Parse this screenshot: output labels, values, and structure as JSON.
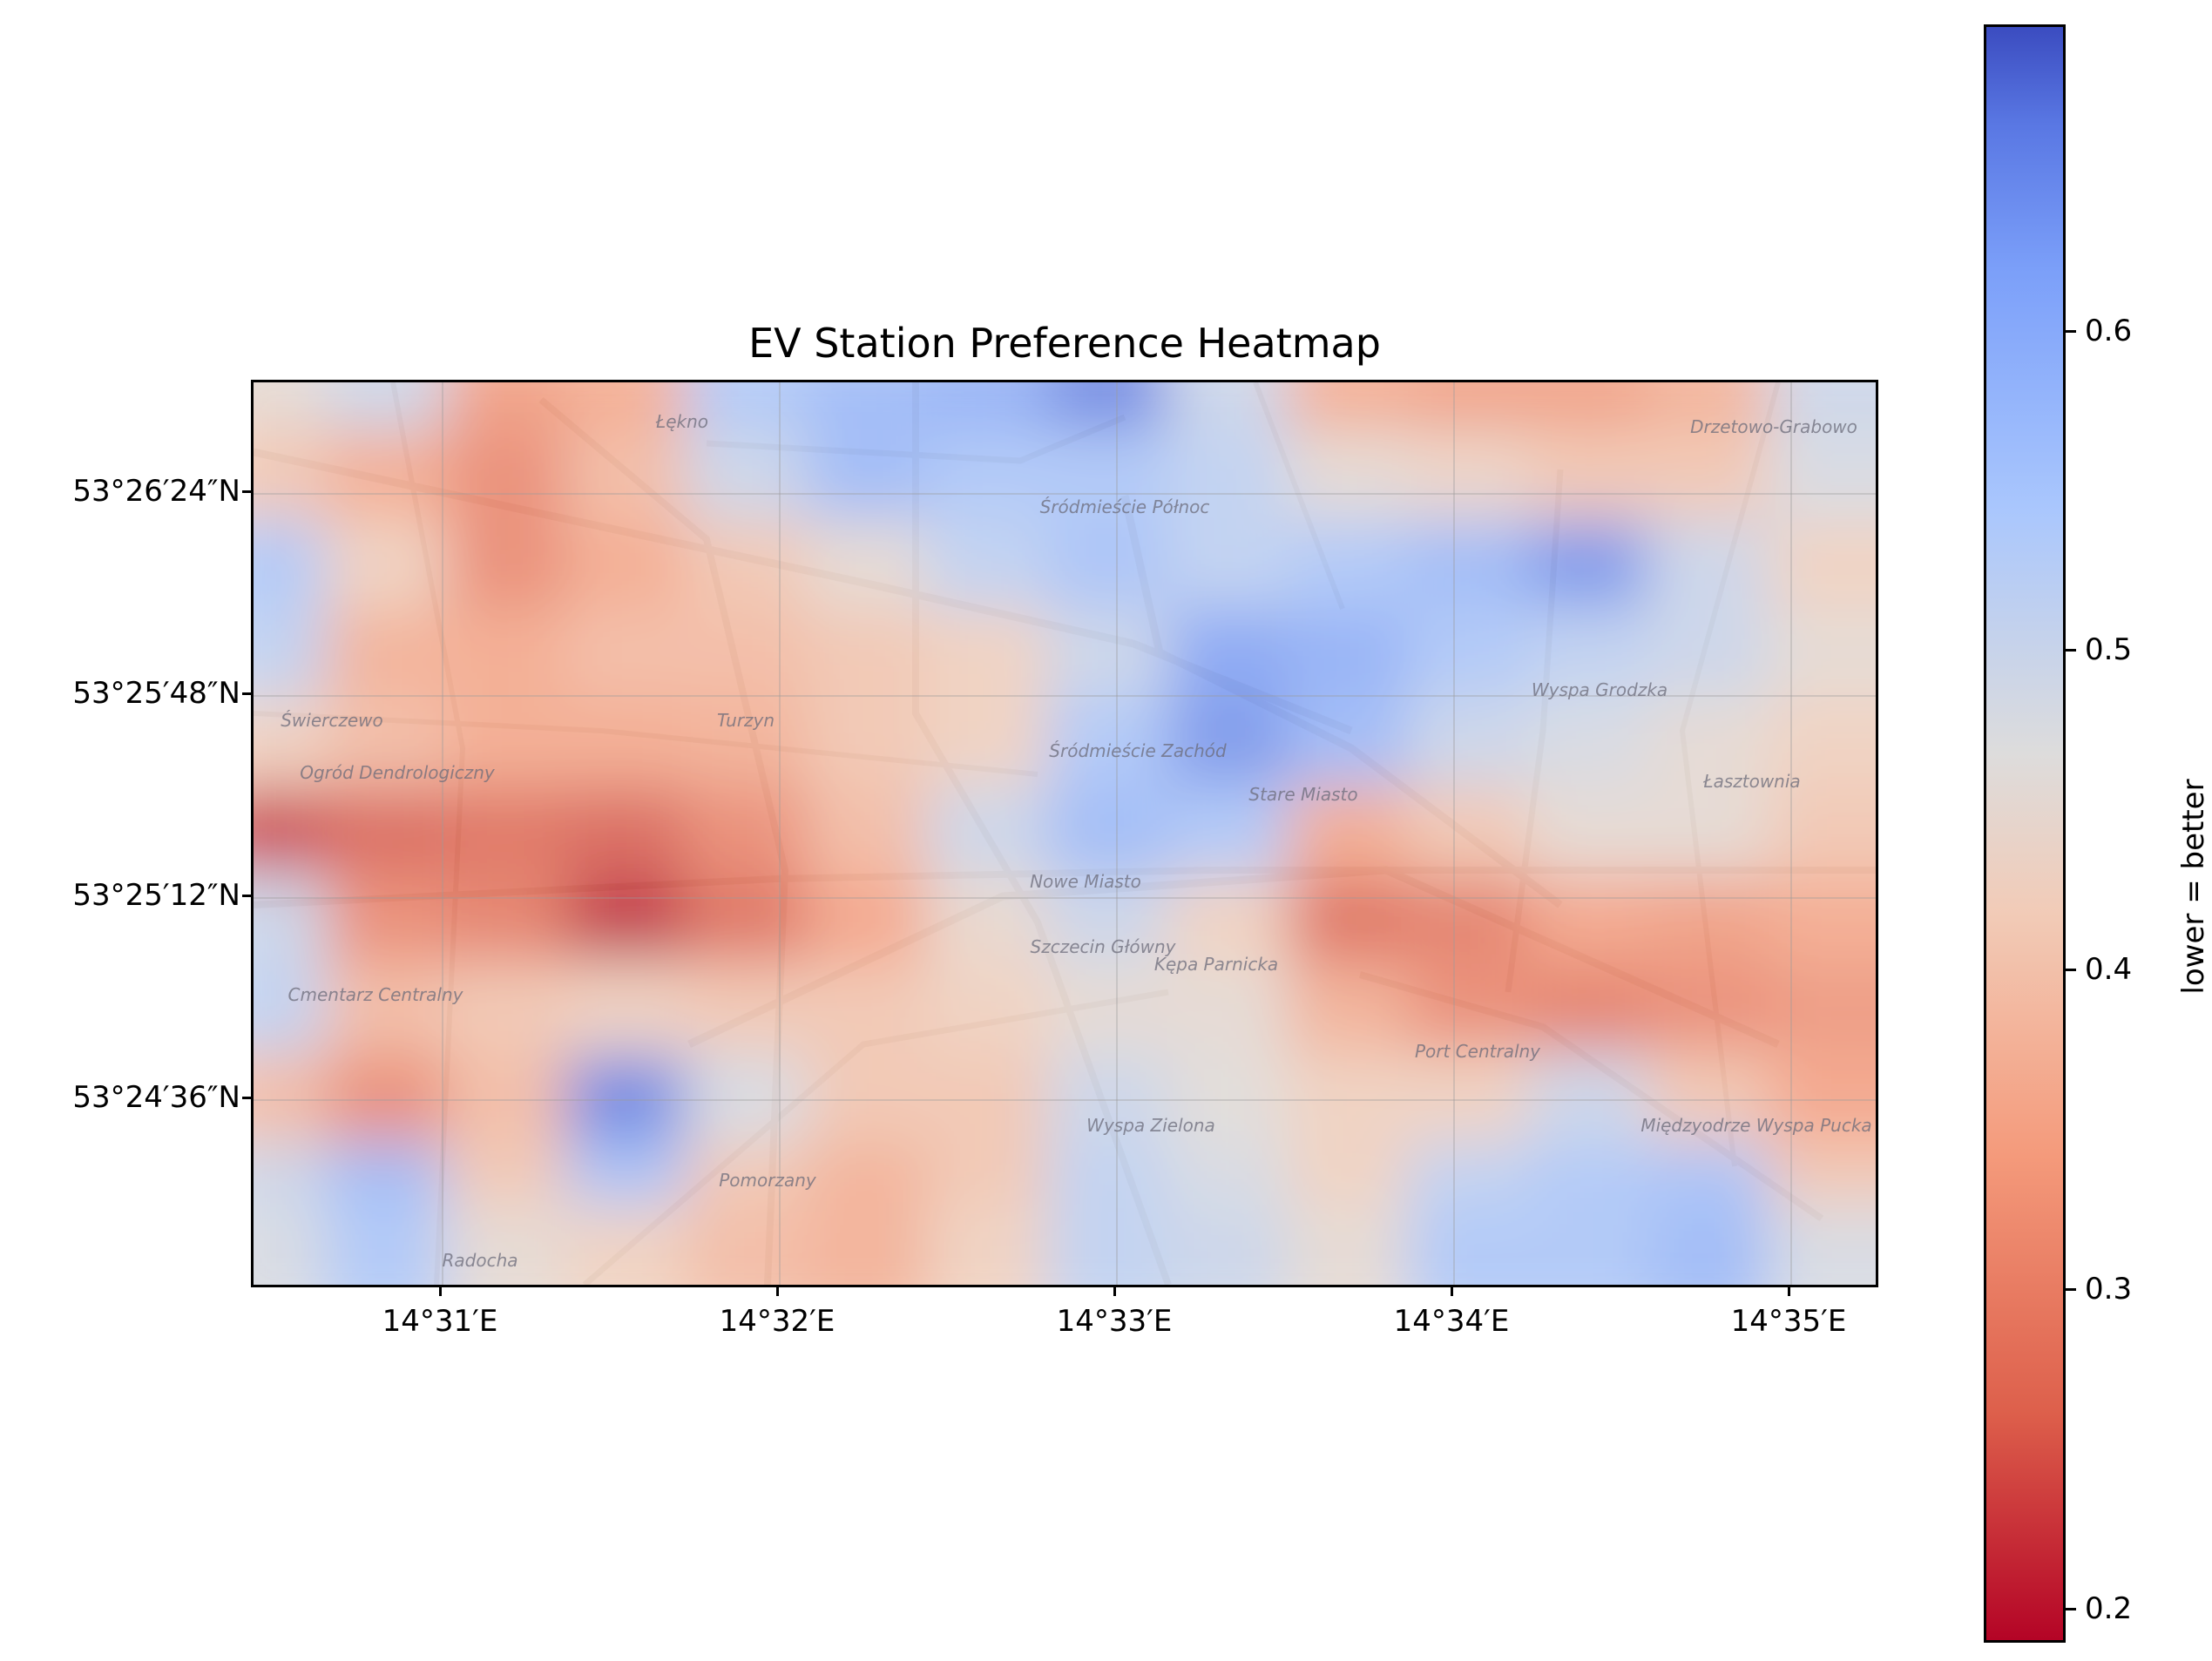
{
  "title": "EV Station Preference Heatmap",
  "y_ticks": [
    "53°26′24″N",
    "53°25′48″N",
    "53°25′12″N",
    "53°24′36″N"
  ],
  "x_ticks": [
    "14°31′E",
    "14°32′E",
    "14°33′E",
    "14°34′E",
    "14°35′E"
  ],
  "colorbar": {
    "label": "lower = better",
    "ticks": [
      "0.6",
      "0.5",
      "0.4",
      "0.3",
      "0.2"
    ],
    "min": 0.19,
    "max": 0.69,
    "colormap": "coolwarm_r"
  },
  "map_labels": [
    "Łękno",
    "Drzetowo-Grabowo",
    "Śródmieście Północ",
    "Śródmieście Zachód",
    "Turzyn",
    "Świerczewo",
    "Stare Miasto",
    "Łasztownia",
    "Nowe Miasto",
    "Wyspa Grodzka",
    "Cmentarz Centralny",
    "Kępa Parnicka",
    "Pomorzany",
    "Międzyodrze Wyspa Pucka",
    "Wyspa Zielona",
    "Szczecin Główny",
    "Port Centralny",
    "Radocha",
    "Ogród Dendrologiczny"
  ],
  "chart_data": {
    "type": "heatmap",
    "title": "EV Station Preference Heatmap",
    "colorbar_label": "lower = better",
    "value_range": [
      0.19,
      0.69
    ],
    "colorbar_ticks": [
      0.2,
      0.3,
      0.4,
      0.5,
      0.6
    ],
    "x_ticks": [
      "14°31′E",
      "14°32′E",
      "14°33′E",
      "14°34′E",
      "14°35′E"
    ],
    "y_ticks": [
      "53°26′24″N",
      "53°25′48″N",
      "53°25′12″N",
      "53°24′36″N"
    ],
    "xlim_lon": [
      14.5071,
      14.588
    ],
    "ylim_lat": [
      53.4113,
      53.4468
    ],
    "lon": [
      14.509,
      14.515,
      14.521,
      14.527,
      14.533,
      14.539,
      14.545,
      14.551,
      14.557,
      14.563,
      14.569,
      14.575,
      14.581,
      14.587
    ],
    "lat": [
      53.446,
      53.4425,
      53.439,
      53.4355,
      53.432,
      53.4285,
      53.425,
      53.4215,
      53.418,
      53.4145,
      53.412
    ],
    "values": [
      [
        0.45,
        0.5,
        0.33,
        0.35,
        0.55,
        0.58,
        0.6,
        0.66,
        0.5,
        0.35,
        0.33,
        0.33,
        0.36,
        0.5
      ],
      [
        0.4,
        0.35,
        0.3,
        0.38,
        0.5,
        0.58,
        0.55,
        0.55,
        0.52,
        0.45,
        0.43,
        0.4,
        0.4,
        0.48
      ],
      [
        0.55,
        0.42,
        0.3,
        0.35,
        0.4,
        0.45,
        0.52,
        0.56,
        0.52,
        0.55,
        0.58,
        0.64,
        0.5,
        0.42
      ],
      [
        0.52,
        0.36,
        0.35,
        0.38,
        0.38,
        0.4,
        0.42,
        0.5,
        0.62,
        0.6,
        0.55,
        0.52,
        0.5,
        0.45
      ],
      [
        0.42,
        0.38,
        0.35,
        0.35,
        0.36,
        0.4,
        0.42,
        0.55,
        0.64,
        0.58,
        0.5,
        0.48,
        0.45,
        0.42
      ],
      [
        0.22,
        0.25,
        0.26,
        0.25,
        0.3,
        0.38,
        0.5,
        0.58,
        0.55,
        0.35,
        0.4,
        0.45,
        0.45,
        0.4
      ],
      [
        0.5,
        0.3,
        0.28,
        0.2,
        0.26,
        0.34,
        0.44,
        0.5,
        0.42,
        0.26,
        0.28,
        0.34,
        0.33,
        0.35
      ],
      [
        0.52,
        0.38,
        0.4,
        0.42,
        0.4,
        0.4,
        0.42,
        0.45,
        0.45,
        0.36,
        0.3,
        0.28,
        0.3,
        0.32
      ],
      [
        0.38,
        0.3,
        0.38,
        0.66,
        0.48,
        0.4,
        0.4,
        0.5,
        0.46,
        0.42,
        0.42,
        0.5,
        0.4,
        0.34
      ],
      [
        0.5,
        0.58,
        0.4,
        0.56,
        0.4,
        0.36,
        0.4,
        0.52,
        0.48,
        0.42,
        0.52,
        0.55,
        0.56,
        0.4
      ],
      [
        0.48,
        0.55,
        0.45,
        0.42,
        0.38,
        0.36,
        0.42,
        0.52,
        0.5,
        0.45,
        0.55,
        0.55,
        0.58,
        0.48
      ]
    ]
  }
}
